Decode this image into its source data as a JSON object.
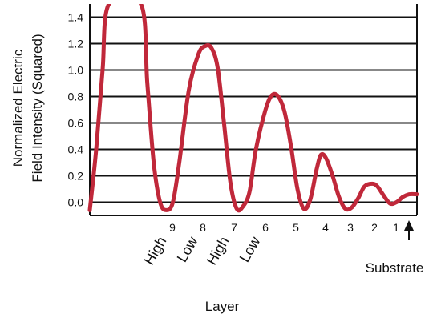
{
  "chart_data": {
    "type": "line",
    "ylabel_lines": [
      "Normalized Electric",
      "Field Intensity (Squared)"
    ],
    "xlabel": "Layer",
    "ylim": [
      -0.1,
      1.5
    ],
    "y_ticks": [
      "1.4",
      "1.2",
      "1.0",
      "0.8",
      "0.6",
      "0.4",
      "0.2",
      "0.0"
    ],
    "grid": "horizontal",
    "layer_numbers": [
      "9",
      "8",
      "7",
      "6",
      "5",
      "4",
      "3",
      "2",
      "1"
    ],
    "layer_types": [
      "High",
      "Low",
      "High",
      "Low"
    ],
    "substrate_label": "Substrate",
    "series": [
      {
        "color": "#c0283a",
        "points": [
          [
            0.0,
            -0.06
          ],
          [
            0.1,
            0.4
          ],
          [
            0.2,
            1.0
          ],
          [
            0.3,
            1.5
          ],
          [
            0.8,
            1.5
          ],
          [
            0.9,
            0.9
          ],
          [
            1.0,
            0.3
          ],
          [
            1.1,
            0.0
          ],
          [
            1.2,
            -0.06
          ],
          [
            1.3,
            0.0
          ],
          [
            1.4,
            0.3
          ],
          [
            1.55,
            0.85
          ],
          [
            1.7,
            1.12
          ],
          [
            1.8,
            1.18
          ],
          [
            1.9,
            1.17
          ],
          [
            2.0,
            1.02
          ],
          [
            2.1,
            0.6
          ],
          [
            2.2,
            0.15
          ],
          [
            2.3,
            -0.05
          ],
          [
            2.4,
            -0.03
          ],
          [
            2.5,
            0.08
          ],
          [
            2.6,
            0.4
          ],
          [
            2.75,
            0.7
          ],
          [
            2.85,
            0.81
          ],
          [
            2.95,
            0.8
          ],
          [
            3.05,
            0.68
          ],
          [
            3.15,
            0.42
          ],
          [
            3.25,
            0.1
          ],
          [
            3.35,
            -0.05
          ],
          [
            3.45,
            0.02
          ],
          [
            3.55,
            0.25
          ],
          [
            3.62,
            0.36
          ],
          [
            3.7,
            0.33
          ],
          [
            3.8,
            0.2
          ],
          [
            3.9,
            0.04
          ],
          [
            4.0,
            -0.05
          ],
          [
            4.1,
            -0.04
          ],
          [
            4.2,
            0.03
          ],
          [
            4.3,
            0.12
          ],
          [
            4.42,
            0.14
          ],
          [
            4.5,
            0.12
          ],
          [
            4.6,
            0.05
          ],
          [
            4.7,
            -0.01
          ],
          [
            4.8,
            0.0
          ],
          [
            4.9,
            0.04
          ],
          [
            5.0,
            0.06
          ],
          [
            5.12,
            0.06
          ]
        ]
      }
    ]
  }
}
